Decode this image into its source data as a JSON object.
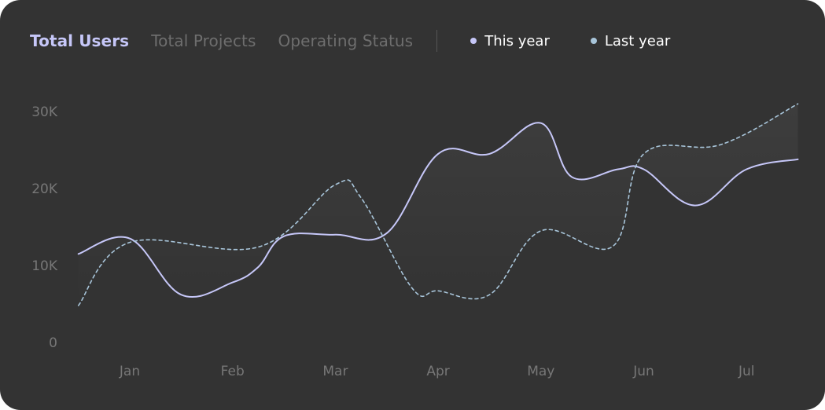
{
  "tabs": [
    {
      "label": "Total Users",
      "active": true
    },
    {
      "label": "Total Projects",
      "active": false
    },
    {
      "label": "Operating Status",
      "active": false
    }
  ],
  "legend": [
    {
      "label": "This year",
      "color": "#c6c7f8"
    },
    {
      "label": "Last year",
      "color": "#a8c5da"
    }
  ],
  "chart_data": {
    "type": "line",
    "x_ticks": [
      "Jan",
      "Feb",
      "Mar",
      "Apr",
      "May",
      "Jun",
      "Jul"
    ],
    "y_ticks": [
      "0",
      "10K",
      "20K",
      "30K"
    ],
    "ylim": [
      0,
      30000
    ],
    "grid": false,
    "series": [
      {
        "name": "This year",
        "color": "#c6c7f8",
        "style": "solid",
        "x": [
          -0.5,
          0,
          0.5,
          1.0,
          1.25,
          1.5,
          2.0,
          2.5,
          3.0,
          3.5,
          4.0,
          4.3,
          4.75,
          5.0,
          5.5,
          6.0,
          6.5
        ],
        "y": [
          11500,
          13500,
          6200,
          7800,
          9800,
          13800,
          14000,
          14200,
          24500,
          24500,
          28500,
          21500,
          22500,
          22500,
          17800,
          22500,
          23800
        ]
      },
      {
        "name": "Last year",
        "color": "#a8c5da",
        "style": "dashed",
        "x": [
          -0.5,
          0.0,
          1.25,
          2.0,
          2.25,
          2.75,
          3.0,
          3.5,
          4.0,
          4.7,
          5.0,
          5.75,
          6.5
        ],
        "y": [
          4800,
          13000,
          12400,
          20500,
          18800,
          7000,
          6700,
          6200,
          14500,
          12500,
          24500,
          25700,
          31000
        ]
      }
    ]
  }
}
